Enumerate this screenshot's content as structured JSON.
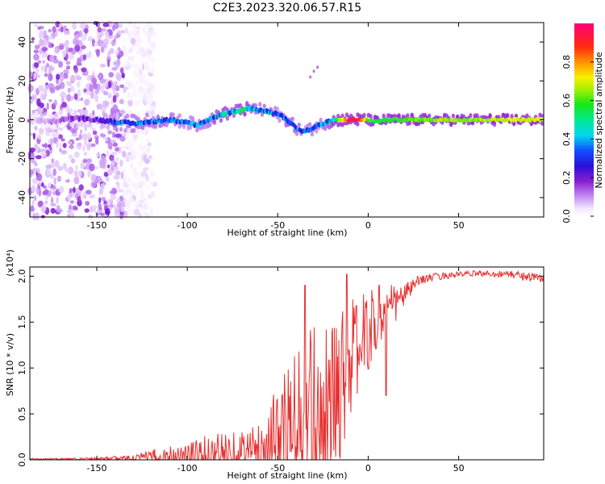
{
  "title": "C2E3.2023.320.06.57.R15",
  "chart_data": [
    {
      "type": "heatmap",
      "name": "spectrogram",
      "xlabel": "Height of straight line (km)",
      "ylabel": "Frequency (Hz)",
      "xlim": [
        -187,
        97
      ],
      "ylim": [
        -50,
        50
      ],
      "xticks": [
        -150,
        -100,
        -50,
        0,
        50
      ],
      "xtick_labels": [
        "-150",
        "-100",
        "-50",
        "0",
        "50"
      ],
      "yticks": [
        -40,
        -20,
        0,
        20,
        40
      ],
      "ytick_labels": [
        "-40",
        "-20",
        "0",
        "20",
        "40"
      ],
      "colorbar": {
        "label": "Normalized spectral amplitude",
        "range": [
          0,
          1
        ],
        "ticks": [
          0.0,
          0.2,
          0.4,
          0.6,
          0.8
        ],
        "tick_labels": [
          "0.0",
          "0.2",
          "0.4",
          "0.6",
          "0.8"
        ]
      },
      "ridge": {
        "x": [
          -187,
          -175,
          -165,
          -150,
          -140,
          -130,
          -120,
          -110,
          -100,
          -95,
          -90,
          -85,
          -80,
          -75,
          -70,
          -65,
          -60,
          -55,
          -50,
          -45,
          -40,
          -36,
          -32,
          -28,
          -25,
          -22,
          -18,
          -15,
          -10,
          -5,
          0,
          5,
          10,
          20,
          40,
          60,
          80,
          97
        ],
        "freq": [
          0,
          -1,
          1,
          0,
          -1,
          -2,
          -1,
          0,
          -1,
          -3,
          -1,
          1,
          3,
          4,
          5,
          6,
          5,
          4,
          3,
          0,
          -4,
          -6,
          -5,
          -3,
          -2,
          -1,
          0,
          0,
          0,
          0,
          0,
          -1,
          0,
          0,
          0,
          0,
          0,
          0
        ],
        "amplitude": [
          0.05,
          0.1,
          0.15,
          0.2,
          0.3,
          0.35,
          0.35,
          0.35,
          0.3,
          0.35,
          0.3,
          0.4,
          0.45,
          0.4,
          0.45,
          0.4,
          0.35,
          0.4,
          0.3,
          0.4,
          0.35,
          0.3,
          0.35,
          0.3,
          0.35,
          0.4,
          0.5,
          0.7,
          0.9,
          0.9,
          0.6,
          0.55,
          0.55,
          0.6,
          0.65,
          0.65,
          0.7,
          0.7
        ]
      }
    },
    {
      "type": "line",
      "name": "snr",
      "xlabel": "Height of straight line (km)",
      "ylabel": "SNR (10 * v/v)",
      "scale_label": "(x10⁴)",
      "xlim": [
        -187,
        97
      ],
      "ylim": [
        0,
        2.1
      ],
      "xticks": [
        -150,
        -100,
        -50,
        0,
        50
      ],
      "xtick_labels": [
        "-150",
        "-100",
        "-50",
        "0",
        "50"
      ],
      "yticks": [
        0,
        0.5,
        1.0,
        1.5,
        2.0
      ],
      "ytick_labels": [
        "0.0",
        "0.5",
        "1.0",
        "1.5",
        "2.0"
      ],
      "color": "#e83030",
      "envelope": {
        "x": [
          -187,
          -160,
          -140,
          -130,
          -120,
          -110,
          -100,
          -90,
          -80,
          -70,
          -60,
          -55,
          -50,
          -45,
          -40,
          -35,
          -30,
          -25,
          -20,
          -15,
          -10,
          -5,
          0,
          5,
          10,
          15,
          20,
          25,
          30,
          40,
          50,
          60,
          80,
          97
        ],
        "base": [
          0.01,
          0.01,
          0.02,
          0.02,
          0.03,
          0.04,
          0.05,
          0.06,
          0.07,
          0.08,
          0.1,
          0.12,
          0.15,
          0.2,
          0.25,
          0.3,
          0.35,
          0.45,
          0.6,
          0.9,
          1.1,
          1.25,
          1.4,
          1.5,
          1.6,
          1.7,
          1.8,
          1.9,
          1.97,
          2.0,
          2.02,
          2.03,
          2.02,
          1.97
        ],
        "spread": [
          0.005,
          0.01,
          0.02,
          0.03,
          0.08,
          0.12,
          0.15,
          0.2,
          0.25,
          0.25,
          0.3,
          0.45,
          0.6,
          0.8,
          0.9,
          1.0,
          1.0,
          0.9,
          0.8,
          0.8,
          0.6,
          0.5,
          0.4,
          0.35,
          0.3,
          0.2,
          0.12,
          0.08,
          0.05,
          0.04,
          0.03,
          0.03,
          0.04,
          0.06
        ]
      },
      "peaks": [
        {
          "x": -35,
          "y": 1.9
        },
        {
          "x": -12,
          "y": 2.02
        },
        {
          "x": 6,
          "y": 1.9
        },
        {
          "x": 10,
          "y": 0.7
        }
      ]
    }
  ]
}
